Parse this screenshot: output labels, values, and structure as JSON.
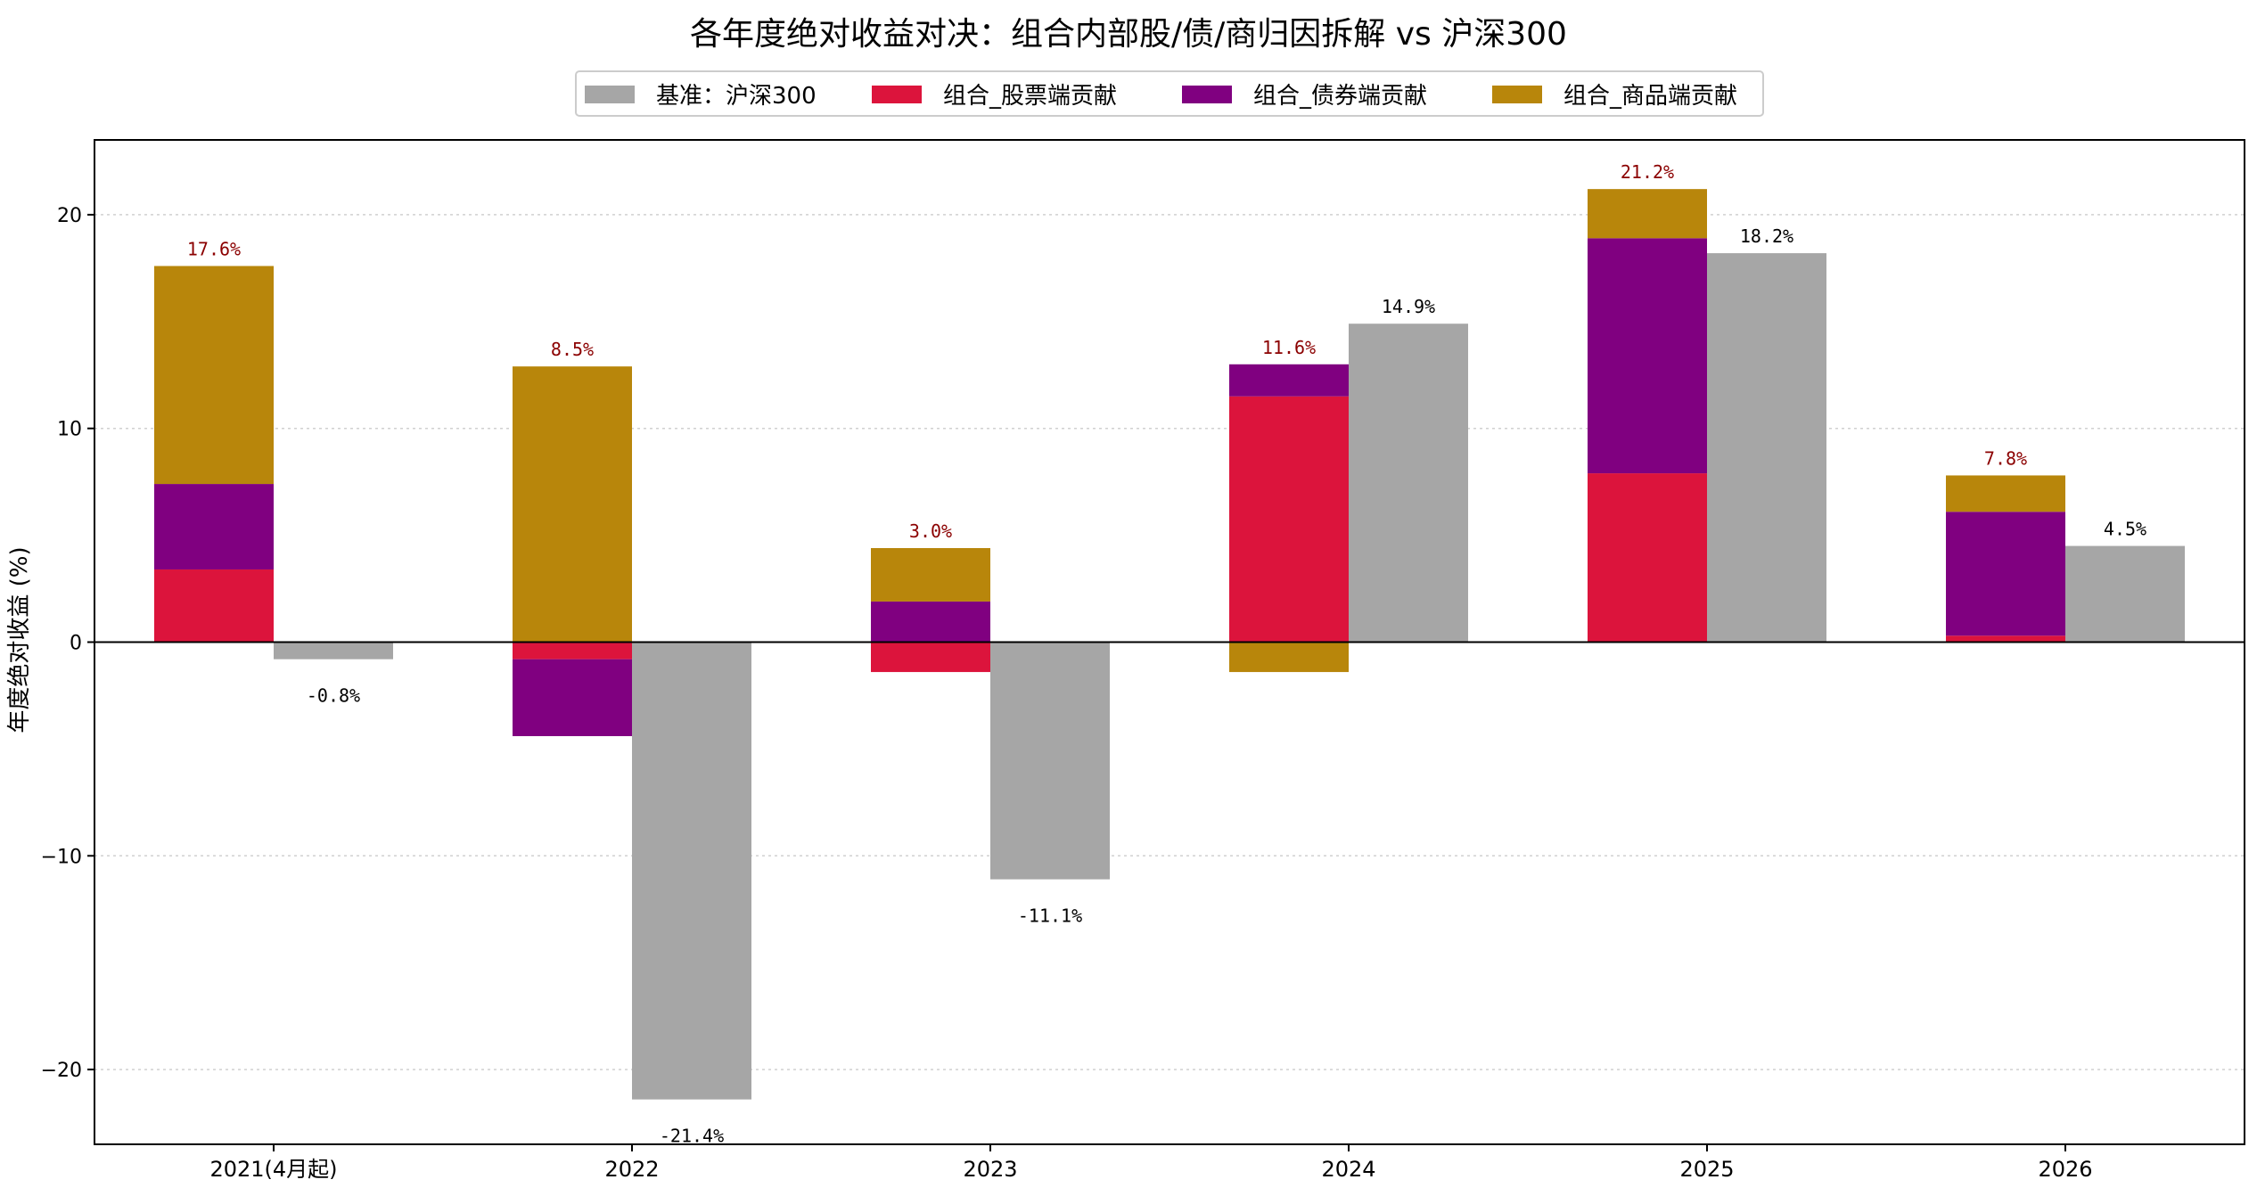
{
  "chart_data": {
    "type": "bar",
    "title": "各年度绝对收益对决：组合内部股/债/商归因拆解 vs 沪深300",
    "ylabel": "年度绝对收益 (%)",
    "xlabel": "",
    "ylim": [
      -23.5,
      23.5
    ],
    "yticks": [
      -20,
      -10,
      0,
      10,
      20
    ],
    "grid": "y-dotted",
    "legend_position": "top-center",
    "categories": [
      "2021(4月起)",
      "2022",
      "2023",
      "2024",
      "2025",
      "2026"
    ],
    "benchmark": {
      "name": "基准：沪深300",
      "color": "#a6a6a6",
      "values": [
        -0.8,
        -21.4,
        -11.1,
        14.9,
        18.2,
        4.5
      ],
      "labels": [
        "-0.8%",
        "-21.4%",
        "-11.1%",
        "14.9%",
        "18.2%",
        "4.5%"
      ]
    },
    "series": [
      {
        "name": "组合_股票端贡献",
        "color": "#dc143c",
        "values": [
          3.4,
          -0.8,
          -1.4,
          11.5,
          7.9,
          0.3
        ]
      },
      {
        "name": "组合_债券端贡献",
        "color": "#800080",
        "values": [
          4.0,
          -3.6,
          1.9,
          1.5,
          11.0,
          5.8
        ]
      },
      {
        "name": "组合_商品端贡献",
        "color": "#b8860b",
        "values": [
          10.2,
          12.9,
          2.5,
          -1.4,
          2.3,
          1.7
        ]
      }
    ],
    "totals_labels": [
      "17.6%",
      "8.5%",
      "3.0%",
      "11.6%",
      "21.2%",
      "7.8%"
    ],
    "totals_label_color": "#8b0000",
    "benchmark_label_color": "#000000"
  }
}
